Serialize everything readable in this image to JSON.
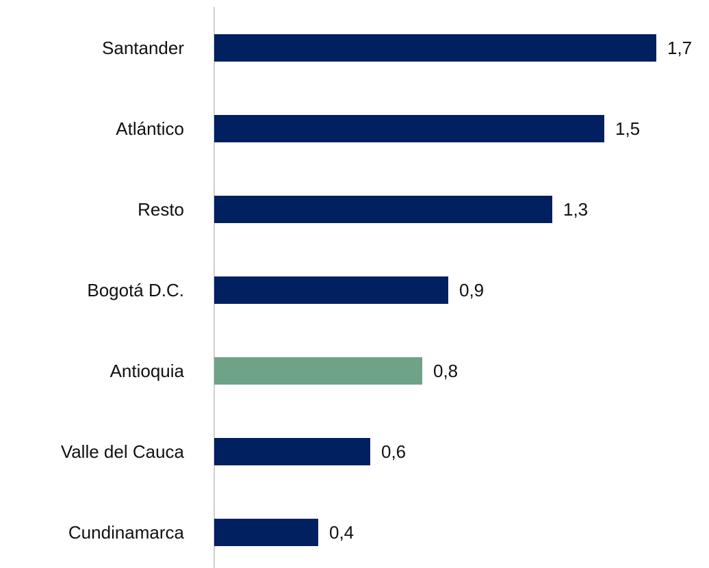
{
  "chart_data": {
    "type": "bar",
    "orientation": "horizontal",
    "categories": [
      "Santander",
      "Atlántico",
      "Resto",
      "Bogotá D.C.",
      "Antioquia",
      "Valle del Cauca",
      "Cundinamarca"
    ],
    "values": [
      1.7,
      1.5,
      1.3,
      0.9,
      0.8,
      0.6,
      0.4
    ],
    "value_labels": [
      "1,7",
      "1,5",
      "1,3",
      "0,9",
      "0,8",
      "0,6",
      "0,4"
    ],
    "colors": [
      "#002060",
      "#002060",
      "#002060",
      "#002060",
      "#70a288",
      "#002060",
      "#002060"
    ]
  }
}
